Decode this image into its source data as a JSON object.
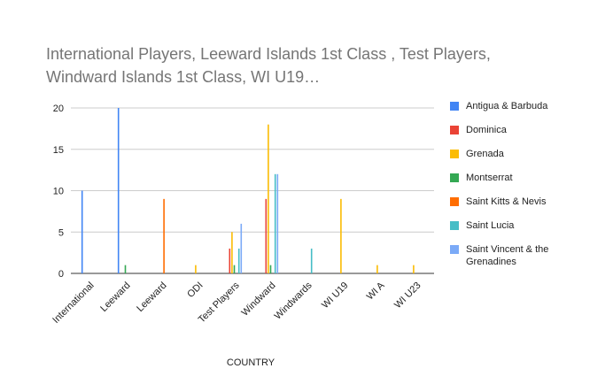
{
  "chart_data": {
    "type": "bar",
    "title": [
      "International Players, Leeward Islands 1st Class , Test Players,",
      "Windward Islands 1st Class, WI U19…"
    ],
    "x_label": "COUNTRY",
    "categories": [
      "International",
      "Leeward",
      "Leeward",
      "ODI",
      "Test Players",
      "Windward",
      "Windwards",
      "WI U19",
      "WI A",
      "WI U23"
    ],
    "series": [
      {
        "name": "Antigua & Barbuda",
        "color": "#4285f4",
        "values": [
          10,
          20,
          0,
          0,
          0,
          0,
          0,
          0,
          0,
          0
        ]
      },
      {
        "name": "Dominica",
        "color": "#ea4335",
        "values": [
          0,
          0,
          0,
          0,
          3,
          9,
          0,
          0,
          0,
          0
        ]
      },
      {
        "name": "Grenada",
        "color": "#fbbc04",
        "values": [
          0,
          0,
          0,
          1,
          5,
          18,
          0,
          9,
          1,
          1
        ]
      },
      {
        "name": "Montserrat",
        "color": "#34a853",
        "values": [
          0,
          1,
          0,
          0,
          1,
          1,
          0,
          0,
          0,
          0
        ]
      },
      {
        "name": "Saint Kitts & Nevis",
        "color": "#ff6d01",
        "values": [
          0,
          0,
          9,
          0,
          0,
          0,
          0,
          0,
          0,
          0
        ]
      },
      {
        "name": "Saint Lucia",
        "color": "#46bdc6",
        "values": [
          0,
          0,
          0,
          0,
          3,
          12,
          3,
          0,
          0,
          0
        ]
      },
      {
        "name": "Saint Vincent & the Grenadines",
        "color": "#7baaf7",
        "values": [
          0,
          0,
          0,
          0,
          6,
          12,
          0,
          0,
          0,
          0
        ]
      }
    ],
    "ylim": [
      0,
      20
    ],
    "yticks": [
      0,
      5,
      10,
      15,
      20
    ],
    "grid": true,
    "legend": "right"
  }
}
